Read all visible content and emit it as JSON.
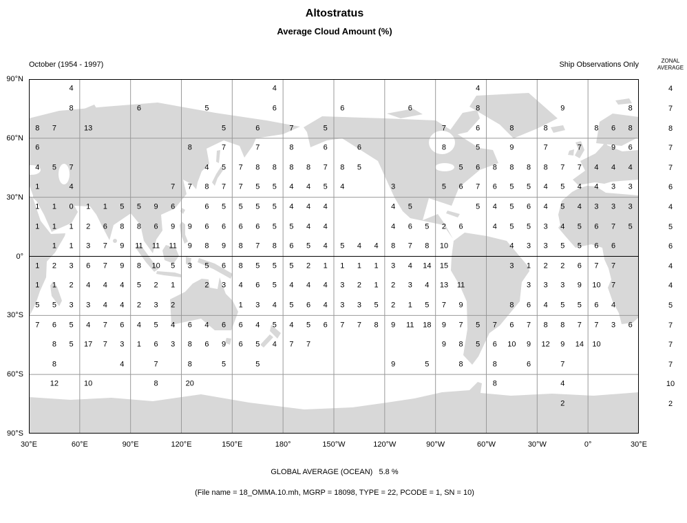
{
  "title": "Altostratus",
  "subtitle": "Average Cloud Amount (%)",
  "meta": {
    "period": "October (1954 - 1997)",
    "source": "Ship Observations Only",
    "zonal_header_line1": "ZONAL",
    "zonal_header_line2": "AVERAGE"
  },
  "footer": {
    "global_average": "GLOBAL AVERAGE (OCEAN)   5.8 %",
    "file_info": "(File name = 18_OMMA.10.mh, MGRP = 18098, TYPE = 22, PCODE = 1, SN = 10)"
  },
  "axes": {
    "latitude_ticks": [
      "90°N",
      "60°N",
      "30°N",
      "0°",
      "30°S",
      "60°S",
      "90°S"
    ],
    "longitude_ticks": [
      "30°E",
      "60°E",
      "90°E",
      "120°E",
      "150°E",
      "180°",
      "150°W",
      "120°W",
      "90°W",
      "60°W",
      "30°W",
      "0°",
      "30°E"
    ]
  },
  "colors": {
    "land": "#d8d8d8",
    "grid_line": "#999999",
    "equator_line": "#000000",
    "border": "#000000",
    "text": "#000000"
  },
  "chart_data": {
    "type": "heatmap",
    "title": "Altostratus average cloud amount (%)",
    "subtitle": "October (1954 - 1997), Ship Observations Only",
    "units": "percent",
    "lat_range": [
      90,
      -90
    ],
    "lon_start_deg_east": 30,
    "cell_deg_lat": 10,
    "cell_deg_lon": 10,
    "global_average_ocean": "5.8 %",
    "lat_bands": [
      "80N-90N",
      "70N-80N",
      "60N-70N",
      "50N-60N",
      "40N-50N",
      "30N-40N",
      "20N-30N",
      "10N-20N",
      "0-10N",
      "0-10S",
      "10S-20S",
      "20S-30S",
      "30S-40S",
      "40S-50S",
      "50S-60S",
      "60S-70S",
      "70S-80S",
      "80S-90S"
    ],
    "zonal_averages": [
      "4",
      "7",
      "8",
      "7",
      "7",
      "6",
      "4",
      "5",
      "6",
      "4",
      "4",
      "5",
      "7",
      "7",
      "7",
      "10",
      "2",
      ""
    ],
    "grid": [
      [
        "",
        "",
        "4",
        "",
        "",
        "",
        "",
        "",
        "",
        "",
        "",
        "",
        "",
        "",
        "4",
        "",
        "",
        "",
        "",
        "",
        "",
        "",
        "",
        "",
        "",
        "",
        "4",
        "",
        "",
        "",
        "",
        "",
        "",
        "",
        "",
        ""
      ],
      [
        "",
        "",
        "8",
        "",
        "",
        "",
        "6",
        "",
        "",
        "",
        "5",
        "",
        "",
        "",
        "6",
        "",
        "",
        "",
        "6",
        "",
        "",
        "",
        "6",
        "",
        "",
        "",
        "8",
        "",
        "",
        "",
        "",
        "9",
        "",
        "",
        "",
        "8"
      ],
      [
        "8",
        "7",
        "",
        "13",
        "",
        "",
        "",
        "",
        "",
        "",
        "",
        "5",
        "",
        "6",
        "",
        "7",
        "",
        "5",
        "",
        "",
        "",
        "",
        "",
        "",
        "7",
        "",
        "6",
        "",
        "8",
        "",
        "8",
        "",
        "",
        "8",
        "6",
        "8"
      ],
      [
        "6",
        "",
        "",
        "",
        "",
        "",
        "",
        "",
        "",
        "8",
        "",
        "7",
        "",
        "7",
        "",
        "8",
        "",
        "6",
        "",
        "6",
        "",
        "",
        "",
        "",
        "8",
        "",
        "5",
        "",
        "9",
        "",
        "7",
        "",
        "7",
        "",
        "9",
        "6"
      ],
      [
        "4",
        "5",
        "7",
        "",
        "",
        "",
        "",
        "",
        "",
        "",
        "4",
        "5",
        "7",
        "8",
        "8",
        "8",
        "8",
        "7",
        "8",
        "5",
        "",
        "",
        "",
        "",
        "",
        "5",
        "6",
        "8",
        "8",
        "8",
        "8",
        "7",
        "7",
        "4",
        "4",
        "4"
      ],
      [
        "1",
        "",
        "4",
        "",
        "",
        "",
        "",
        "",
        "7",
        "7",
        "8",
        "7",
        "7",
        "5",
        "5",
        "4",
        "4",
        "5",
        "4",
        "",
        "",
        "3",
        "",
        "",
        "5",
        "6",
        "7",
        "6",
        "5",
        "5",
        "4",
        "5",
        "4",
        "4",
        "3",
        "3"
      ],
      [
        "1",
        "1",
        "0",
        "1",
        "1",
        "5",
        "5",
        "9",
        "6",
        "",
        "6",
        "5",
        "5",
        "5",
        "5",
        "4",
        "4",
        "4",
        "",
        "",
        "",
        "4",
        "5",
        "",
        "",
        "",
        "5",
        "4",
        "5",
        "6",
        "4",
        "5",
        "4",
        "3",
        "3",
        "3"
      ],
      [
        "1",
        "1",
        "1",
        "2",
        "6",
        "8",
        "8",
        "6",
        "9",
        "9",
        "6",
        "6",
        "6",
        "6",
        "5",
        "5",
        "4",
        "4",
        "",
        "",
        "",
        "4",
        "6",
        "5",
        "2",
        "6",
        "",
        "4",
        "5",
        "5",
        "3",
        "4",
        "5",
        "6",
        "7",
        "5"
      ],
      [
        "",
        "1",
        "1",
        "3",
        "7",
        "9",
        "11",
        "11",
        "11",
        "9",
        "8",
        "9",
        "8",
        "7",
        "8",
        "6",
        "5",
        "4",
        "5",
        "4",
        "4",
        "8",
        "7",
        "8",
        "10",
        "",
        "",
        "",
        "4",
        "3",
        "3",
        "5",
        "5",
        "6",
        "6",
        ""
      ],
      [
        "1",
        "2",
        "3",
        "6",
        "7",
        "9",
        "8",
        "10",
        "5",
        "3",
        "5",
        "6",
        "8",
        "5",
        "5",
        "5",
        "2",
        "1",
        "1",
        "1",
        "1",
        "3",
        "4",
        "14",
        "15",
        "",
        "",
        "",
        "3",
        "1",
        "2",
        "2",
        "6",
        "7",
        "7",
        ""
      ],
      [
        "1",
        "1",
        "2",
        "4",
        "4",
        "4",
        "5",
        "2",
        "1",
        "",
        "2",
        "3",
        "4",
        "6",
        "5",
        "4",
        "4",
        "4",
        "3",
        "2",
        "1",
        "2",
        "3",
        "4",
        "13",
        "11",
        "",
        "",
        "",
        "3",
        "3",
        "3",
        "9",
        "10",
        "7",
        ""
      ],
      [
        "5",
        "5",
        "3",
        "3",
        "4",
        "4",
        "2",
        "3",
        "2",
        "",
        "",
        "",
        "1",
        "3",
        "4",
        "5",
        "6",
        "4",
        "3",
        "3",
        "5",
        "2",
        "1",
        "5",
        "7",
        "9",
        "",
        "",
        "8",
        "6",
        "4",
        "5",
        "5",
        "6",
        "4",
        ""
      ],
      [
        "7",
        "6",
        "5",
        "4",
        "7",
        "6",
        "4",
        "5",
        "4",
        "6",
        "4",
        "6",
        "6",
        "4",
        "5",
        "4",
        "5",
        "6",
        "7",
        "7",
        "8",
        "9",
        "11",
        "18",
        "9",
        "7",
        "5",
        "7",
        "6",
        "7",
        "8",
        "8",
        "7",
        "7",
        "3",
        "6"
      ],
      [
        "",
        "8",
        "5",
        "17",
        "7",
        "3",
        "1",
        "6",
        "3",
        "8",
        "6",
        "9",
        "6",
        "5",
        "4",
        "7",
        "7",
        "",
        "",
        "",
        "",
        "",
        "",
        "",
        "9",
        "8",
        "5",
        "6",
        "10",
        "9",
        "12",
        "9",
        "14",
        "10",
        "",
        ""
      ],
      [
        "",
        "8",
        "",
        "",
        "",
        "4",
        "",
        "7",
        "",
        "8",
        "",
        "5",
        "",
        "5",
        "",
        "",
        "",
        "",
        "",
        "",
        "",
        "9",
        "",
        "5",
        "",
        "8",
        "",
        "8",
        "",
        "6",
        "",
        "7",
        "",
        "",
        "",
        ""
      ],
      [
        "",
        "12",
        "",
        "10",
        "",
        "",
        "",
        "8",
        "",
        "20",
        "",
        "",
        "",
        "",
        "",
        "",
        "",
        "",
        "",
        "",
        "",
        "",
        "",
        "",
        "",
        "",
        "",
        "8",
        "",
        "",
        "",
        "4",
        "",
        "",
        "",
        ""
      ],
      [
        "",
        "",
        "",
        "",
        "",
        "",
        "",
        "",
        "",
        "",
        "",
        "",
        "",
        "",
        "",
        "",
        "",
        "",
        "",
        "",
        "",
        "",
        "",
        "",
        "",
        "",
        "",
        "",
        "",
        "",
        "",
        "2",
        "",
        "",
        "",
        ""
      ],
      [
        "",
        "",
        "",
        "",
        "",
        "",
        "",
        "",
        "",
        "",
        "",
        "",
        "",
        "",
        "",
        "",
        "",
        "",
        "",
        "",
        "",
        "",
        "",
        "",
        "",
        "",
        "",
        "",
        "",
        "",
        "",
        "",
        "",
        "",
        "",
        ""
      ]
    ]
  }
}
